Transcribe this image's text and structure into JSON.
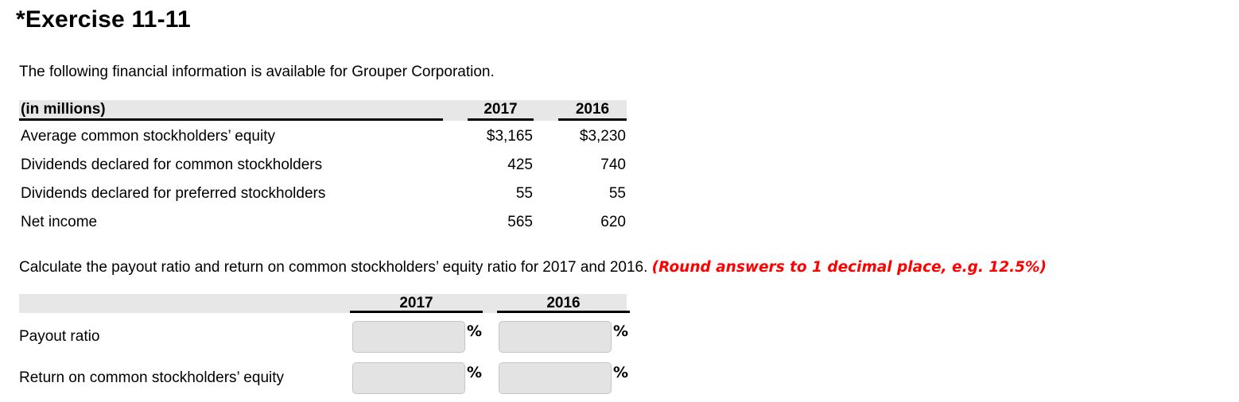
{
  "header": {
    "title": "*Exercise 11-11"
  },
  "intro": "The following financial information is available for Grouper Corporation.",
  "instruction": {
    "main": "Calculate the payout ratio and return on common stockholders’ equity ratio for 2017 and 2016. ",
    "note": "(Round answers to 1 decimal place, e.g. 12.5%)"
  },
  "colors": {
    "header_band": "#e7e7e7",
    "input_fill": "#e3e3e3",
    "input_border": "#c6c6c6",
    "note_red": "#ff0000"
  },
  "financial_table": {
    "corner_label": "(in millions)",
    "col_2017": "2017",
    "col_2016": "2016",
    "rows": [
      {
        "label": "Average common stockholders’ equity",
        "v2017": "$3,165",
        "v2016": "$3,230"
      },
      {
        "label": "Dividends declared for common stockholders",
        "v2017": "425",
        "v2016": "740"
      },
      {
        "label": "Dividends declared for preferred stockholders",
        "v2017": "55",
        "v2016": "55"
      },
      {
        "label": "Net income",
        "v2017": "565",
        "v2016": "620"
      }
    ]
  },
  "answer_table": {
    "col_2017": "2017",
    "col_2016": "2016",
    "percent_suffix": "%",
    "rows": [
      {
        "label": "Payout ratio",
        "value_2017": "",
        "value_2016": ""
      },
      {
        "label": "Return on common stockholders’ equity",
        "value_2017": "",
        "value_2016": ""
      }
    ]
  }
}
